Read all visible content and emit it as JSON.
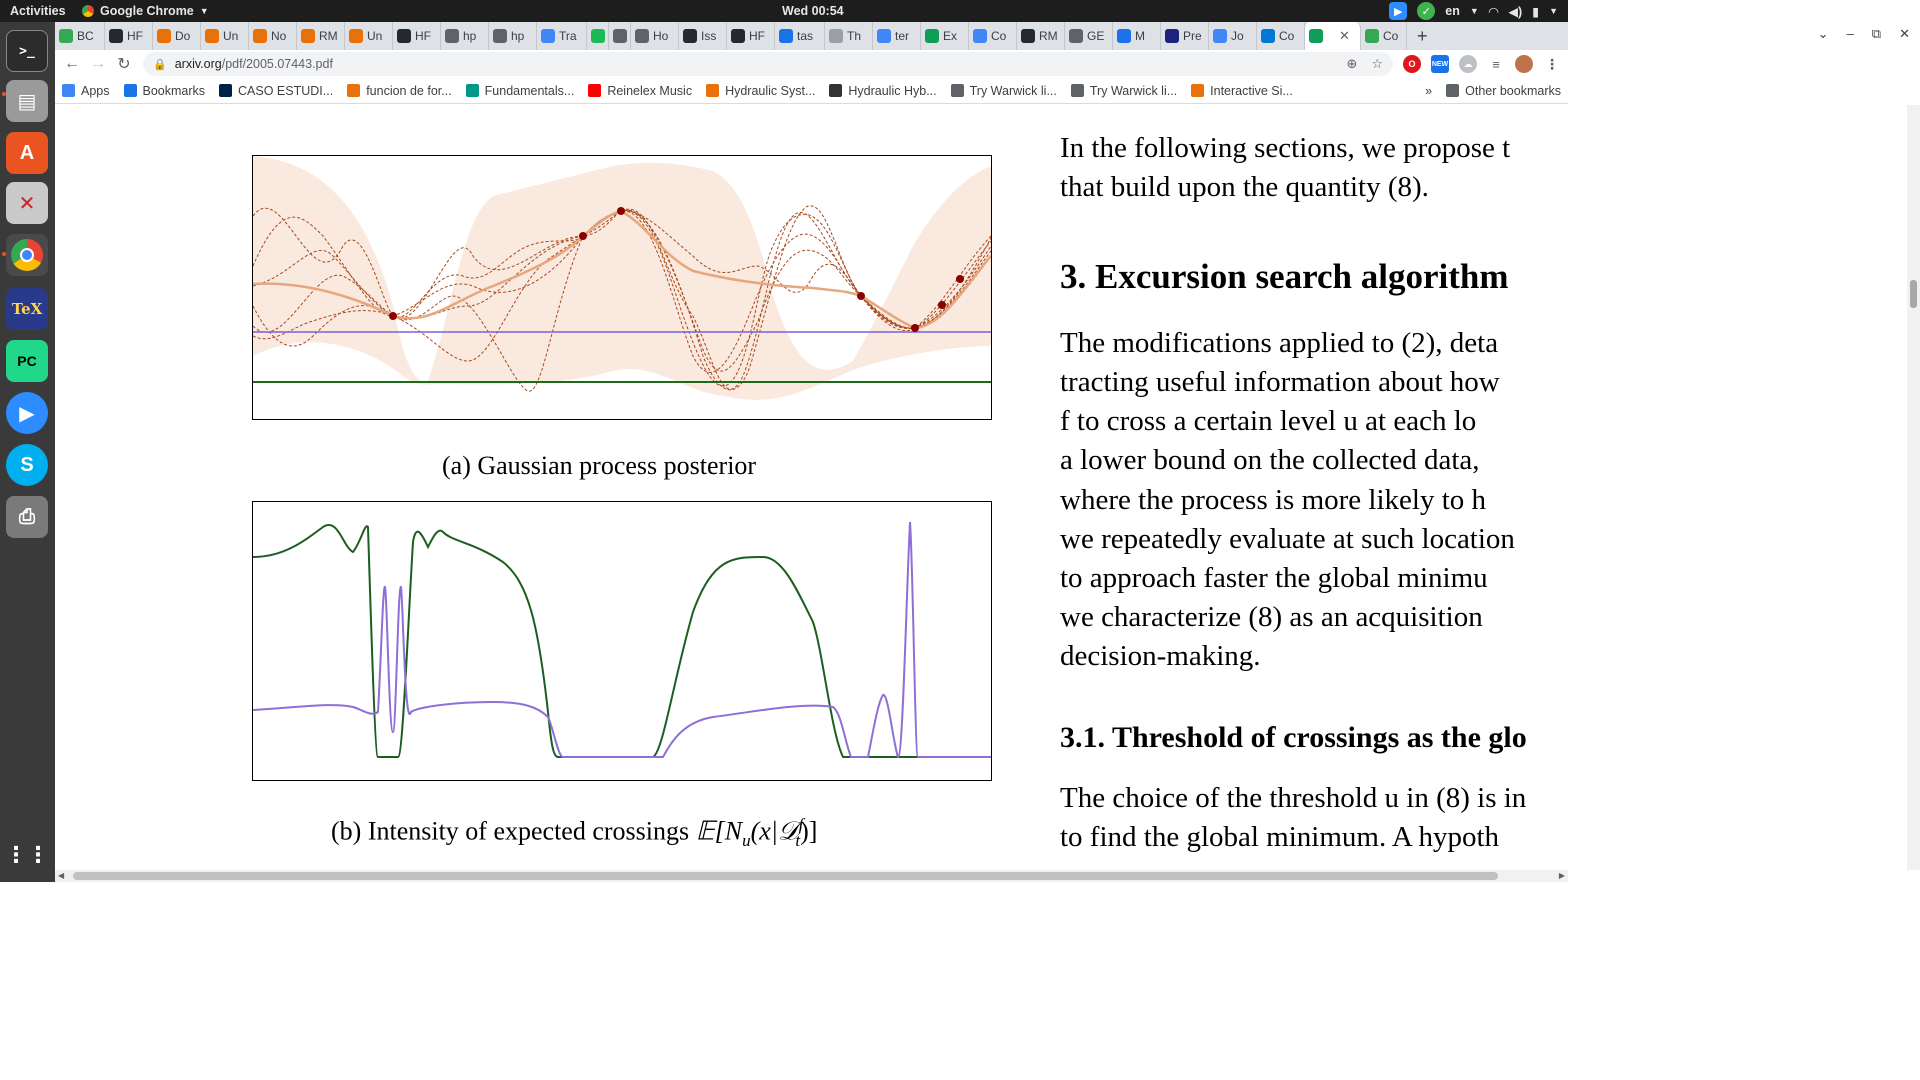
{
  "topbar": {
    "activities": "Activities",
    "app_name": "Google Chrome",
    "clock": "Wed 00:54",
    "lang": "en"
  },
  "tabs": [
    {
      "label": "BC",
      "color": "#34a853"
    },
    {
      "label": "HF",
      "color": "#24292e"
    },
    {
      "label": "Do",
      "color": "#e8710a"
    },
    {
      "label": "Un",
      "color": "#e8710a"
    },
    {
      "label": "No",
      "color": "#e8710a"
    },
    {
      "label": "RM",
      "color": "#e8710a"
    },
    {
      "label": "Un",
      "color": "#e8710a"
    },
    {
      "label": "HF",
      "color": "#24292e"
    },
    {
      "label": "hp",
      "color": "#5f6368"
    },
    {
      "label": "hp",
      "color": "#5f6368"
    },
    {
      "label": "Tra",
      "color": "#4285f4"
    },
    {
      "label": "",
      "color": "#1db954"
    },
    {
      "label": "",
      "color": "#5f6368"
    },
    {
      "label": "Ho",
      "color": "#5f6368"
    },
    {
      "label": "Iss",
      "color": "#24292e"
    },
    {
      "label": "HF",
      "color": "#24292e"
    },
    {
      "label": "tas",
      "color": "#1a73e8"
    },
    {
      "label": "Th",
      "color": "#9aa0a6"
    },
    {
      "label": "ter",
      "color": "#4285f4"
    },
    {
      "label": "Ex",
      "color": "#0f9d58"
    },
    {
      "label": "Co",
      "color": "#4285f4"
    },
    {
      "label": "RM",
      "color": "#24292e"
    },
    {
      "label": "GE",
      "color": "#5f6368"
    },
    {
      "label": "M",
      "color": "#1a73e8"
    },
    {
      "label": "Pre",
      "color": "#1a237e"
    },
    {
      "label": "Jo",
      "color": "#4285f4"
    },
    {
      "label": "Co",
      "color": "#0078d4"
    },
    {
      "label": "",
      "color": "#0f9d58",
      "active": true
    },
    {
      "label": "Co",
      "color": "#34a853"
    }
  ],
  "omnibox": {
    "domain": "arxiv.org",
    "path": "/pdf/2005.07443.pdf"
  },
  "bookmarks": [
    {
      "label": "Apps",
      "color": "#4285f4"
    },
    {
      "label": "Bookmarks",
      "color": "#1a73e8"
    },
    {
      "label": "CASO ESTUDI...",
      "color": "#002147"
    },
    {
      "label": "funcion de for...",
      "color": "#e8710a"
    },
    {
      "label": "Fundamentals...",
      "color": "#009688"
    },
    {
      "label": "Reinelex Music",
      "color": "#ff0000"
    },
    {
      "label": "Hydraulic Syst...",
      "color": "#e8710a"
    },
    {
      "label": "Hydraulic Hyb...",
      "color": "#333333"
    },
    {
      "label": "Try Warwick li...",
      "color": "#5f6368"
    },
    {
      "label": "Try Warwick li...",
      "color": "#5f6368"
    },
    {
      "label": "Interactive Si...",
      "color": "#e8710a"
    }
  ],
  "bookmarks_overflow": "»",
  "other_bookmarks": "Other bookmarks",
  "pdf": {
    "caption_a": "(a) Gaussian process posterior",
    "caption_b_prefix": "(b) Intensity of expected crossings ",
    "caption_b_math": "𝔼[N",
    "caption_b_sub": "u",
    "caption_b_math2": "(x|𝒟",
    "caption_b_sup": "f",
    "caption_b_sub2": "t",
    "caption_b_end": ")]",
    "right_lines": [
      "In the following sections, we propose t",
      "that build upon the quantity (8)."
    ],
    "section_heading": "3. Excursion search algorithm",
    "para_lines": [
      "The modifications applied to (2), deta",
      "tracting useful information about how",
      "f to cross a certain level u at each lo",
      "a lower bound on the collected data,",
      "where the process is more likely to h",
      "we repeatedly evaluate at such location",
      "to approach faster the global minimu",
      "we characterize (8) as an acquisition",
      "decision-making."
    ],
    "subsection_heading": "3.1. Threshold of crossings as the glo",
    "sub_lines": [
      "The choice of the threshold u in (8) is in",
      "to find the global minimum. A hypoth"
    ]
  }
}
